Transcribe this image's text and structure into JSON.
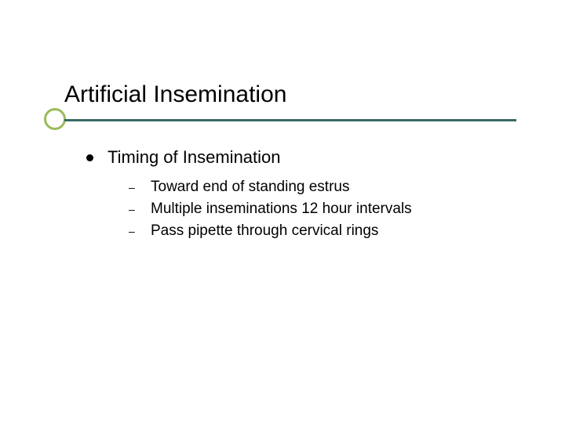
{
  "slide": {
    "title": "Artificial Insemination",
    "title_fontsize": 30,
    "title_color": "#000000",
    "underline_color": "#376a63",
    "underline_height": 3,
    "accent_circle": {
      "border_color": "#9bbb59",
      "border_width": 3,
      "diameter": 28
    },
    "background_color": "#ffffff",
    "body": {
      "level1_bullet_color": "#000000",
      "level1_fontsize": 22,
      "level2_bullet_glyph": "–",
      "level2_fontsize": 19,
      "items": [
        {
          "text": "Timing of Insemination",
          "children": [
            {
              "text": "Toward end of standing estrus"
            },
            {
              "text": "Multiple inseminations 12 hour intervals"
            },
            {
              "text": "Pass pipette through cervical rings"
            }
          ]
        }
      ]
    }
  }
}
